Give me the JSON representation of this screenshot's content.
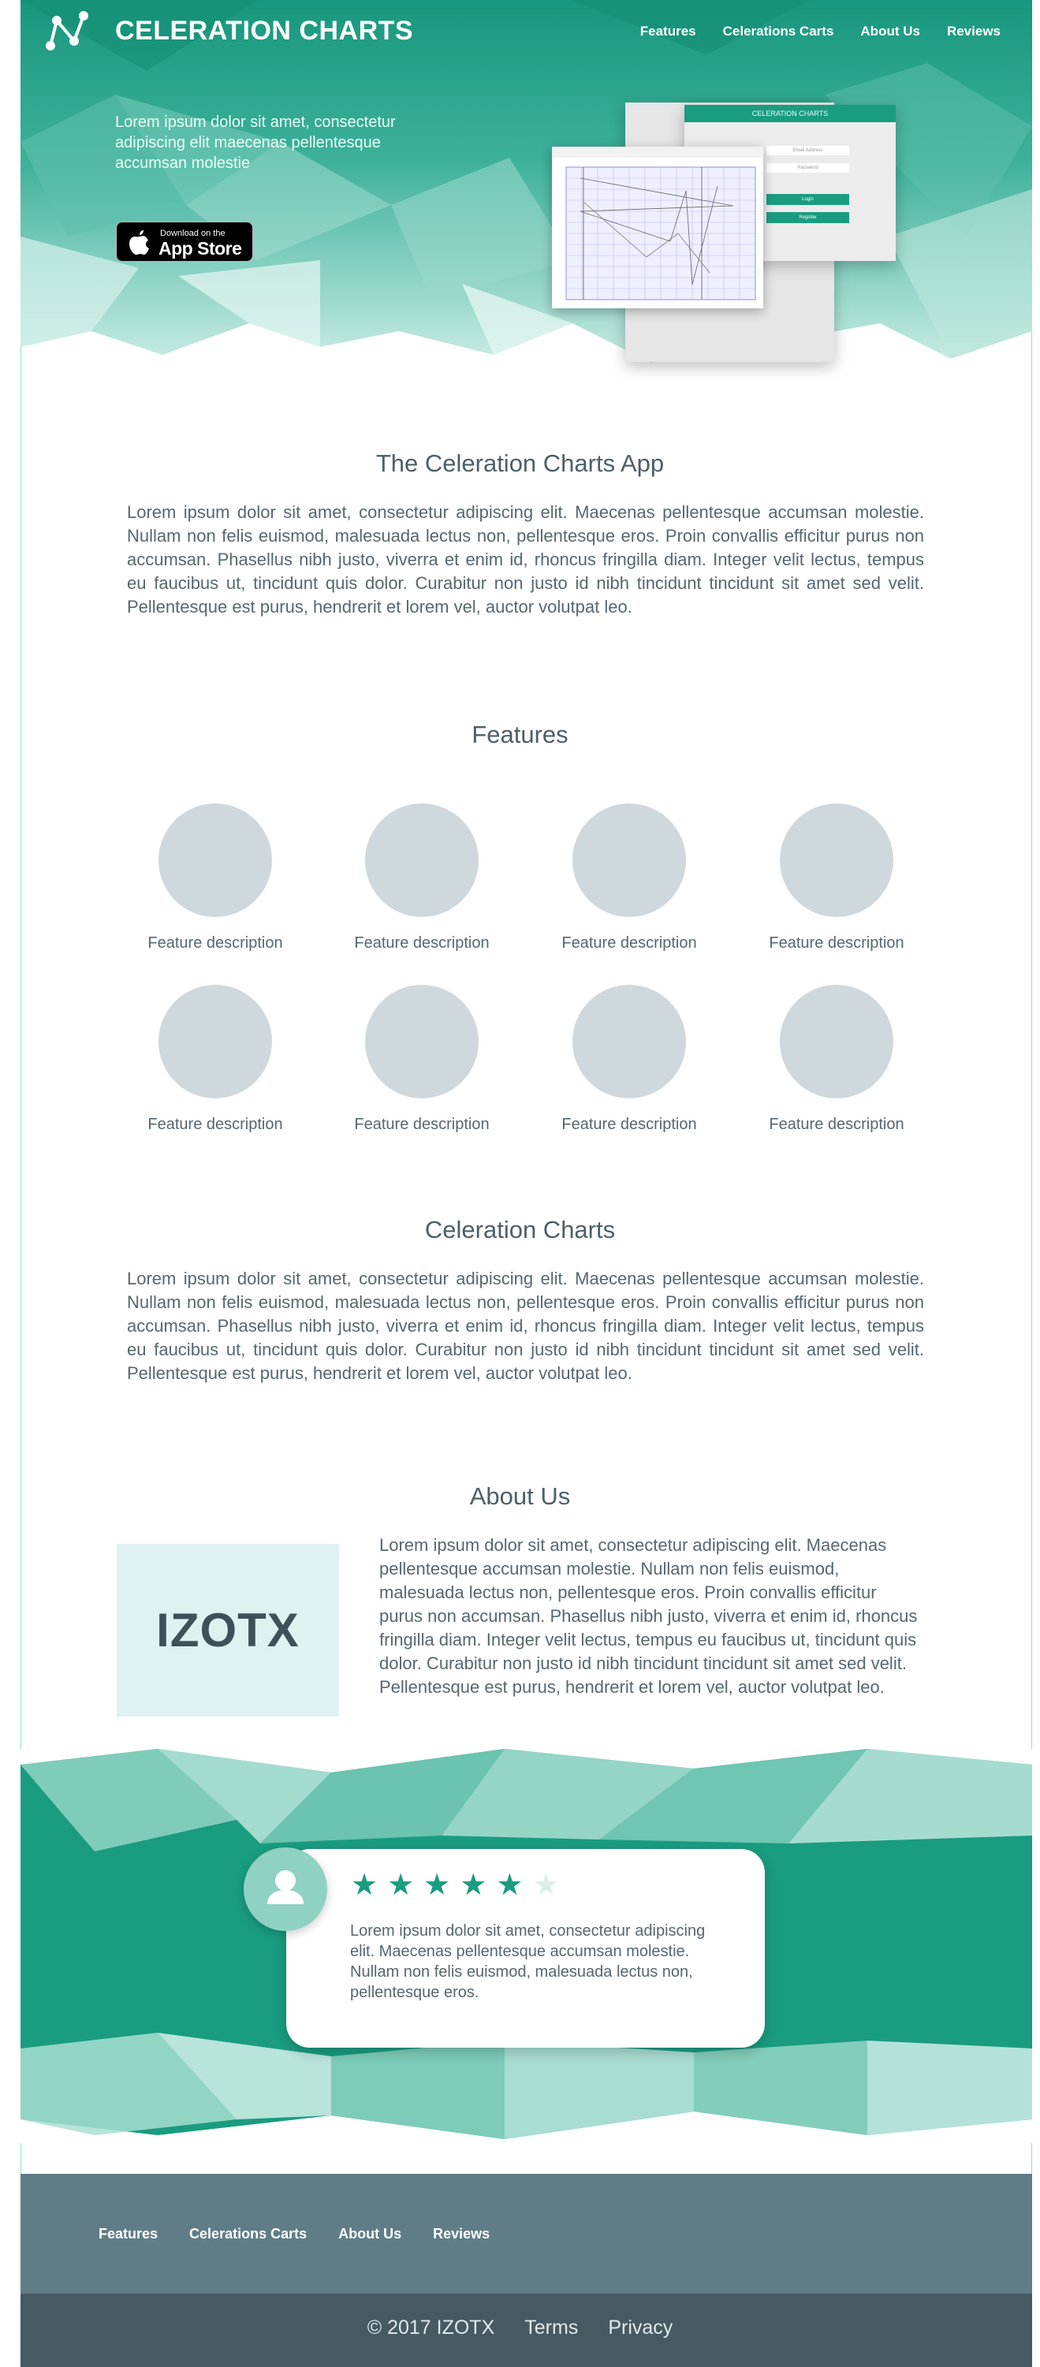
{
  "header": {
    "brand": "CELERATION CHARTS",
    "nav": [
      "Features",
      "Celerations Carts",
      "About Us",
      "Reviews"
    ],
    "tagline": "Lorem ipsum dolor sit amet, consectetur adipiscing elit maecenas pellentesque accumsan molestie",
    "appstore": {
      "small": "Download on the",
      "big": "App Store"
    },
    "mockup": {
      "bar_title": "CELERATION CHARTS",
      "field_1": "Email Address",
      "field_2": "Password",
      "button_1": "Login",
      "button_2": "Register"
    }
  },
  "app_section": {
    "title": "The Celeration Charts App",
    "body": "Lorem ipsum dolor sit amet, consectetur adipiscing elit. Maecenas pellentesque accumsan molestie. Nullam non felis euismod, malesuada lectus non, pellentesque eros. Proin convallis efficitur purus non accumsan. Phasellus nibh justo, viverra et enim id, rhoncus fringilla diam. Integer velit lectus, tempus eu faucibus ut, tincidunt quis dolor. Curabitur non justo id nibh tincidunt tincidunt sit amet sed velit. Pellentesque est purus, hendrerit et lorem vel, auctor volutpat leo."
  },
  "features": {
    "title": "Features",
    "items": [
      "Feature description",
      "Feature description",
      "Feature description",
      "Feature description",
      "Feature description",
      "Feature description",
      "Feature description",
      "Feature description"
    ]
  },
  "charts_section": {
    "title": "Celeration Charts",
    "body": "Lorem ipsum dolor sit amet, consectetur adipiscing elit. Maecenas pellentesque accumsan molestie. Nullam non felis euismod, malesuada lectus non, pellentesque eros. Proin convallis efficitur purus non accumsan. Phasellus nibh justo, viverra et enim id, rhoncus fringilla diam. Integer velit lectus, tempus eu faucibus ut, tincidunt quis dolor. Curabitur non justo id nibh tincidunt tincidunt sit amet sed velit. Pellentesque est purus, hendrerit et lorem vel, auctor volutpat leo."
  },
  "about": {
    "title": "About Us",
    "logo_text": "IZOTX",
    "body": "Lorem ipsum dolor sit amet, consectetur adipiscing elit. Maecenas pellentesque accumsan molestie. Nullam non felis euismod, malesuada lectus non, pellentesque eros. Proin convallis efficitur purus non accumsan. Phasellus nibh justo, viverra et enim id, rhoncus fringilla diam. Integer velit lectus, tempus eu faucibus ut, tincidunt quis dolor. Curabitur non justo id nibh tincidunt tincidunt sit amet sed velit. Pellentesque est purus, hendrerit et lorem vel, auctor volutpat leo."
  },
  "review": {
    "rating": 5,
    "max_rating": 6,
    "text": "Lorem ipsum dolor sit amet, consectetur adipiscing elit.  Maecenas pellentesque accumsan molestie. Nullam non felis euismod, malesuada lectus non, pellentesque eros."
  },
  "footer": {
    "nav": [
      "Features",
      "Celerations Carts",
      "About Us",
      "Reviews"
    ],
    "copyright": "© 2017 IZOTX",
    "terms": "Terms",
    "privacy": "Privacy"
  },
  "colors": {
    "teal": "#1a9c80",
    "teal_light": "#8fd1c2",
    "footer_top": "#607d87",
    "footer_bottom": "#475a63",
    "placeholder": "#cfd8dc"
  },
  "icons": [
    "app-logo-icon",
    "apple-icon",
    "user-icon",
    "star-icon"
  ]
}
